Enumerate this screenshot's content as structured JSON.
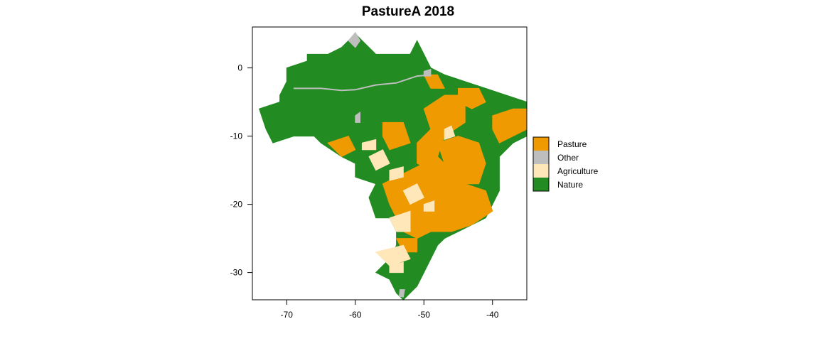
{
  "title": "PastureA 2018",
  "chart_data": {
    "type": "map",
    "title": "PastureA 2018",
    "xlim": [
      -75,
      -35
    ],
    "ylim": [
      -34,
      6
    ],
    "x_ticks": [
      -70,
      -60,
      -50,
      -40
    ],
    "y_ticks": [
      0,
      -10,
      -20,
      -30
    ],
    "grid": false,
    "legend_position": "right",
    "legend": [
      {
        "label": "Pasture",
        "color": "#EE9A00"
      },
      {
        "label": "Other",
        "color": "#BEBEBE"
      },
      {
        "label": "Agriculture",
        "color": "#FFE7BA"
      },
      {
        "label": "Nature",
        "color": "#228B22"
      }
    ]
  }
}
